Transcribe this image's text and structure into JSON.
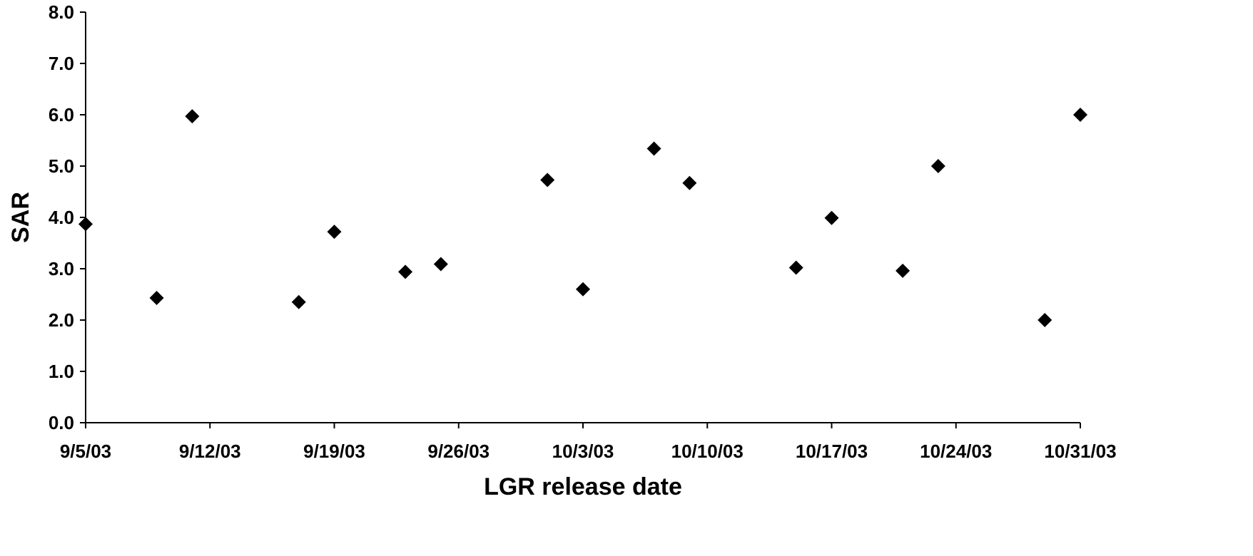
{
  "chart_data": {
    "type": "scatter",
    "title": "",
    "xlabel": "LGR release date",
    "ylabel": "SAR",
    "xlim": [
      "9/5/03",
      "10/31/03"
    ],
    "ylim": [
      0.0,
      8.0
    ],
    "x_ticks": [
      "9/5/03",
      "9/12/03",
      "9/19/03",
      "9/26/03",
      "10/3/03",
      "10/10/03",
      "10/17/03",
      "10/24/03",
      "10/31/03"
    ],
    "y_ticks": [
      "0.0",
      "1.0",
      "2.0",
      "3.0",
      "4.0",
      "5.0",
      "6.0",
      "7.0",
      "8.0"
    ],
    "grid": false,
    "legend": "none",
    "marker": "diamond",
    "color": "#000000",
    "points": [
      {
        "x": "9/5/03",
        "y": 3.87
      },
      {
        "x": "9/9/03",
        "y": 2.43
      },
      {
        "x": "9/11/03",
        "y": 5.97
      },
      {
        "x": "9/17/03",
        "y": 2.35
      },
      {
        "x": "9/19/03",
        "y": 3.72
      },
      {
        "x": "9/23/03",
        "y": 2.94
      },
      {
        "x": "9/25/03",
        "y": 3.09
      },
      {
        "x": "10/1/03",
        "y": 4.73
      },
      {
        "x": "10/3/03",
        "y": 2.6
      },
      {
        "x": "10/7/03",
        "y": 5.34
      },
      {
        "x": "10/9/03",
        "y": 4.67
      },
      {
        "x": "10/15/03",
        "y": 3.02
      },
      {
        "x": "10/17/03",
        "y": 3.99
      },
      {
        "x": "10/21/03",
        "y": 2.96
      },
      {
        "x": "10/23/03",
        "y": 5.0
      },
      {
        "x": "10/29/03",
        "y": 2.0
      },
      {
        "x": "10/31/03",
        "y": 6.0
      }
    ]
  }
}
